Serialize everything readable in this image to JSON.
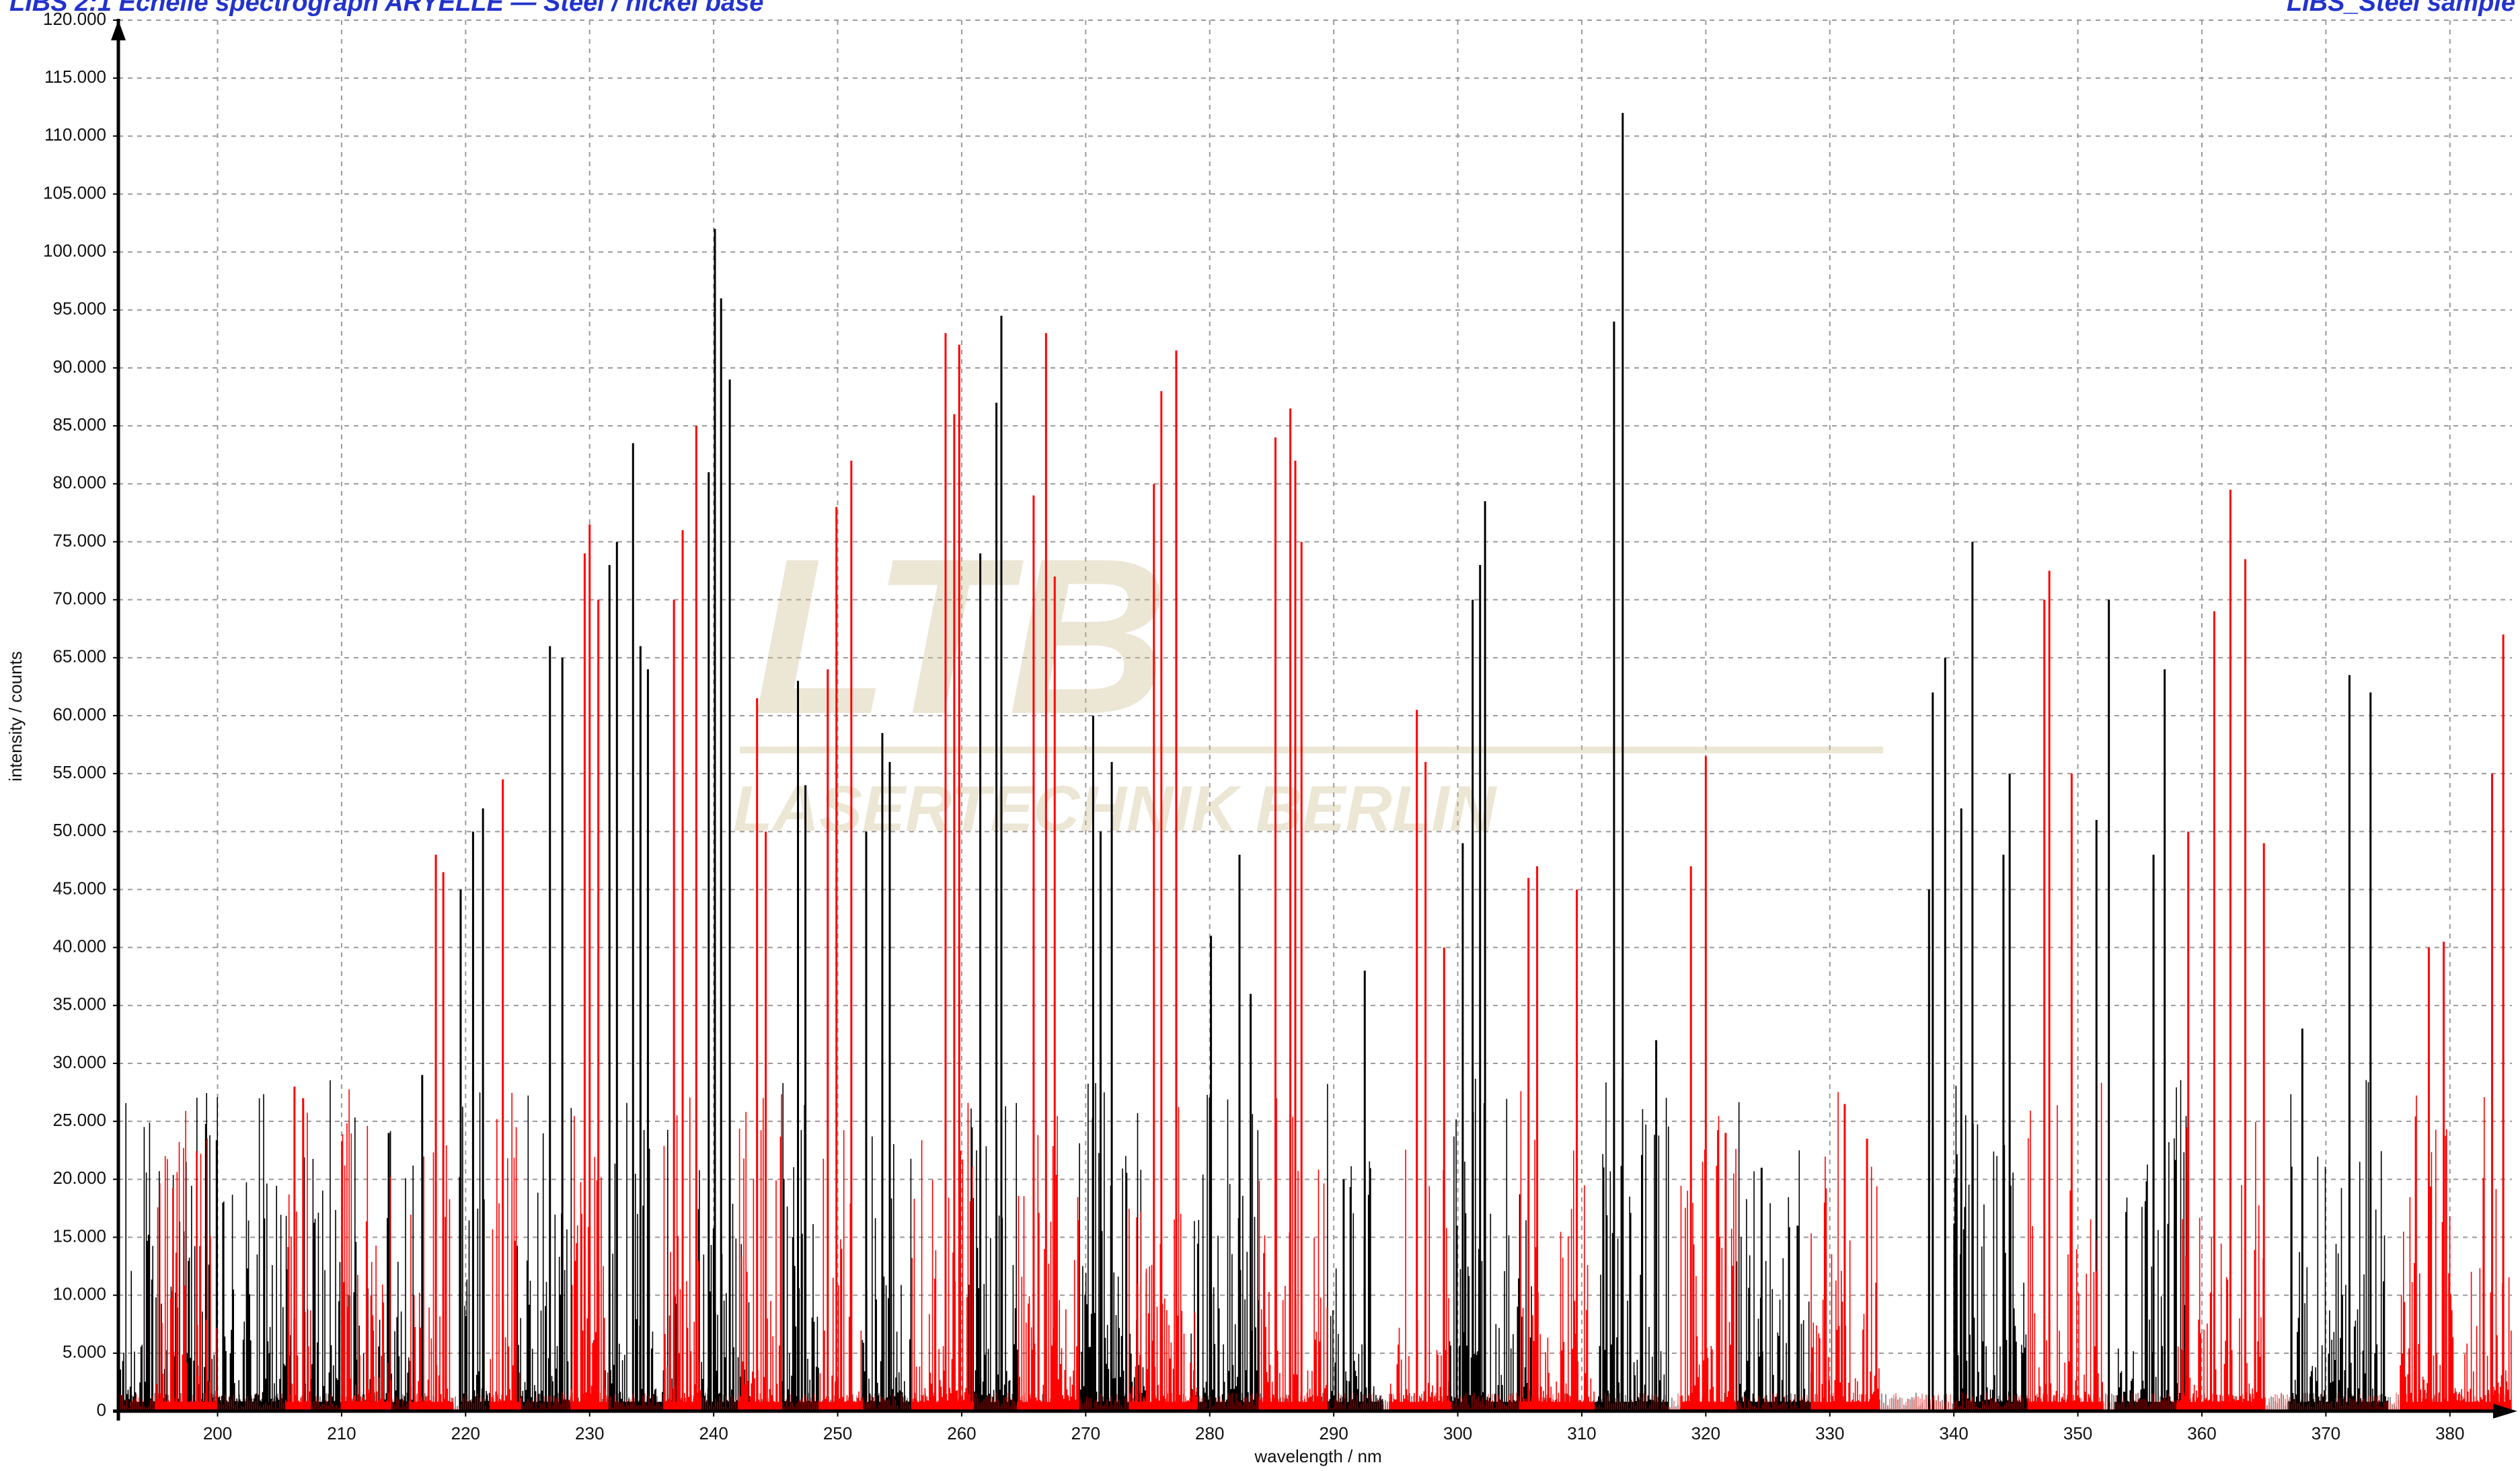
{
  "header": {
    "left_text": "LIBS 2:1 Echelle spectrograph ARYELLE — Steel / nickel base",
    "right_text": "LIBS_Steel sample"
  },
  "watermark": {
    "logo_text": "LTB",
    "sub_text": "LASERTECHNIK BERLIN"
  },
  "colors": {
    "series_black": "#000000",
    "series_red": "#ff0000",
    "grid": "#9a9a9a",
    "header": "#2233cc"
  },
  "chart_data": {
    "type": "line",
    "title": "",
    "xlabel": "wavelength / nm",
    "ylabel": "intensity / counts",
    "xlim": [
      192,
      385
    ],
    "ylim": [
      0,
      120000
    ],
    "x_ticks": [
      200,
      210,
      220,
      230,
      240,
      250,
      260,
      270,
      280,
      290,
      300,
      310,
      320,
      330,
      340,
      350,
      360,
      370,
      380
    ],
    "x_tick_labels": [
      "200",
      "210",
      "220",
      "230",
      "240",
      "250",
      "260",
      "270",
      "280",
      "290",
      "300",
      "310",
      "320",
      "330",
      "340",
      "350",
      "360",
      "370",
      "380"
    ],
    "y_ticks": [
      0,
      5000,
      10000,
      15000,
      20000,
      25000,
      30000,
      35000,
      40000,
      45000,
      50000,
      55000,
      60000,
      65000,
      70000,
      75000,
      80000,
      85000,
      90000,
      95000,
      100000,
      105000,
      110000,
      115000,
      120000
    ],
    "y_tick_labels": [
      "0",
      "5.000",
      "10.000",
      "15.000",
      "20.000",
      "25.000",
      "30.000",
      "35.000",
      "40.000",
      "45.000",
      "50.000",
      "55.000",
      "60.000",
      "65.000",
      "70.000",
      "75.000",
      "80.000",
      "85.000",
      "90.000",
      "95.000",
      "100.000",
      "105.000",
      "110.000",
      "115.000",
      "120.000"
    ],
    "grid": true,
    "legend": false,
    "series": [
      {
        "color": "#000000",
        "bands": [
          [
            192,
            206
          ],
          [
            207,
            216
          ],
          [
            219.5,
            222
          ],
          [
            224,
            229
          ],
          [
            231,
            237
          ],
          [
            238.5,
            243
          ],
          [
            245.5,
            248.5
          ],
          [
            252,
            256
          ],
          [
            260.5,
            264.5
          ],
          [
            269.5,
            275
          ],
          [
            278.5,
            284
          ],
          [
            289.5,
            294
          ],
          [
            299,
            306
          ],
          [
            311,
            317
          ],
          [
            322.5,
            328.5
          ],
          [
            340,
            346
          ],
          [
            353,
            359
          ],
          [
            367,
            375
          ]
        ],
        "peaks": [
          {
            "x": 313.3,
            "y": 112000
          },
          {
            "x": 240.1,
            "y": 102000
          },
          {
            "x": 240.6,
            "y": 96000
          },
          {
            "x": 241.3,
            "y": 89000
          },
          {
            "x": 239.6,
            "y": 81000
          },
          {
            "x": 312.6,
            "y": 94000
          },
          {
            "x": 263.2,
            "y": 94500
          },
          {
            "x": 262.8,
            "y": 87000
          },
          {
            "x": 261.5,
            "y": 74000
          },
          {
            "x": 302.2,
            "y": 78500
          },
          {
            "x": 301.8,
            "y": 73000
          },
          {
            "x": 301.2,
            "y": 70000
          },
          {
            "x": 300.4,
            "y": 49000
          },
          {
            "x": 233.5,
            "y": 83500
          },
          {
            "x": 232.2,
            "y": 75000
          },
          {
            "x": 231.6,
            "y": 73000
          },
          {
            "x": 234.1,
            "y": 66000
          },
          {
            "x": 234.7,
            "y": 64000
          },
          {
            "x": 227.8,
            "y": 65000
          },
          {
            "x": 226.8,
            "y": 66000
          },
          {
            "x": 341.5,
            "y": 75000
          },
          {
            "x": 339.3,
            "y": 65000
          },
          {
            "x": 338.3,
            "y": 62000
          },
          {
            "x": 340.6,
            "y": 52000
          },
          {
            "x": 344.0,
            "y": 48000
          },
          {
            "x": 352.5,
            "y": 70000
          },
          {
            "x": 351.5,
            "y": 51000
          },
          {
            "x": 357.0,
            "y": 64000
          },
          {
            "x": 356.1,
            "y": 48000
          },
          {
            "x": 371.9,
            "y": 63500
          },
          {
            "x": 373.6,
            "y": 62000
          },
          {
            "x": 270.6,
            "y": 60000
          },
          {
            "x": 272.1,
            "y": 56000
          },
          {
            "x": 271.2,
            "y": 50000
          },
          {
            "x": 253.6,
            "y": 58500
          },
          {
            "x": 254.2,
            "y": 56000
          },
          {
            "x": 252.3,
            "y": 50000
          },
          {
            "x": 246.8,
            "y": 63000
          },
          {
            "x": 247.4,
            "y": 54000
          },
          {
            "x": 220.6,
            "y": 50000
          },
          {
            "x": 221.4,
            "y": 52000
          },
          {
            "x": 219.6,
            "y": 45000
          },
          {
            "x": 216.5,
            "y": 29000
          },
          {
            "x": 213.8,
            "y": 24000
          },
          {
            "x": 282.4,
            "y": 48000
          },
          {
            "x": 280.1,
            "y": 41000
          },
          {
            "x": 283.3,
            "y": 36000
          },
          {
            "x": 292.5,
            "y": 38000
          },
          {
            "x": 290.8,
            "y": 20000
          },
          {
            "x": 316.0,
            "y": 32000
          },
          {
            "x": 324.5,
            "y": 21000
          },
          {
            "x": 327.4,
            "y": 16000
          },
          {
            "x": 338.0,
            "y": 45000
          },
          {
            "x": 344.5,
            "y": 55000
          },
          {
            "x": 368.1,
            "y": 33000
          },
          {
            "x": 210.6,
            "y": 10000
          },
          {
            "x": 206.2,
            "y": 8000
          },
          {
            "x": 204.2,
            "y": 5000
          },
          {
            "x": 197.6,
            "y": 5000
          }
        ]
      },
      {
        "color": "#ff0000",
        "bands": [
          [
            195,
            200
          ],
          [
            205.5,
            207.5
          ],
          [
            210,
            214
          ],
          [
            215.5,
            219
          ],
          [
            222,
            224.5
          ],
          [
            228.5,
            231.5
          ],
          [
            236,
            239
          ],
          [
            242,
            245.5
          ],
          [
            248.5,
            252
          ],
          [
            256,
            261
          ],
          [
            264.5,
            269.5
          ],
          [
            273.5,
            279
          ],
          [
            284,
            289.5
          ],
          [
            294.5,
            299.5
          ],
          [
            305,
            311
          ],
          [
            318,
            322.5
          ],
          [
            328.5,
            334
          ],
          [
            346,
            352
          ],
          [
            358,
            365
          ],
          [
            376,
            385
          ]
        ],
        "peaks": [
          {
            "x": 258.7,
            "y": 93000
          },
          {
            "x": 259.8,
            "y": 92000
          },
          {
            "x": 259.4,
            "y": 86000
          },
          {
            "x": 266.8,
            "y": 93000
          },
          {
            "x": 265.8,
            "y": 79000
          },
          {
            "x": 267.5,
            "y": 72000
          },
          {
            "x": 277.3,
            "y": 91500
          },
          {
            "x": 276.1,
            "y": 88000
          },
          {
            "x": 275.5,
            "y": 80000
          },
          {
            "x": 286.5,
            "y": 86500
          },
          {
            "x": 285.3,
            "y": 84000
          },
          {
            "x": 286.9,
            "y": 82000
          },
          {
            "x": 287.4,
            "y": 75000
          },
          {
            "x": 251.1,
            "y": 82000
          },
          {
            "x": 249.9,
            "y": 78000
          },
          {
            "x": 249.2,
            "y": 64000
          },
          {
            "x": 238.6,
            "y": 85000
          },
          {
            "x": 237.5,
            "y": 76000
          },
          {
            "x": 236.8,
            "y": 70000
          },
          {
            "x": 230.0,
            "y": 76500
          },
          {
            "x": 229.6,
            "y": 74000
          },
          {
            "x": 230.7,
            "y": 70000
          },
          {
            "x": 362.3,
            "y": 79500
          },
          {
            "x": 363.5,
            "y": 73500
          },
          {
            "x": 361.0,
            "y": 69000
          },
          {
            "x": 347.7,
            "y": 72500
          },
          {
            "x": 347.3,
            "y": 70000
          },
          {
            "x": 349.5,
            "y": 55000
          },
          {
            "x": 384.3,
            "y": 67000
          },
          {
            "x": 383.4,
            "y": 55000
          },
          {
            "x": 378.3,
            "y": 40000
          },
          {
            "x": 379.5,
            "y": 40500
          },
          {
            "x": 243.5,
            "y": 61500
          },
          {
            "x": 244.2,
            "y": 50000
          },
          {
            "x": 296.7,
            "y": 60500
          },
          {
            "x": 297.4,
            "y": 56000
          },
          {
            "x": 298.9,
            "y": 40000
          },
          {
            "x": 320.0,
            "y": 56500
          },
          {
            "x": 318.8,
            "y": 47000
          },
          {
            "x": 321.6,
            "y": 24000
          },
          {
            "x": 223.0,
            "y": 54500
          },
          {
            "x": 217.6,
            "y": 48000
          },
          {
            "x": 218.2,
            "y": 46500
          },
          {
            "x": 306.4,
            "y": 47000
          },
          {
            "x": 309.6,
            "y": 45000
          },
          {
            "x": 305.7,
            "y": 46000
          },
          {
            "x": 331.2,
            "y": 26500
          },
          {
            "x": 333.0,
            "y": 23500
          },
          {
            "x": 329.6,
            "y": 18000
          },
          {
            "x": 206.2,
            "y": 28000
          },
          {
            "x": 206.9,
            "y": 27000
          },
          {
            "x": 212.4,
            "y": 10000
          },
          {
            "x": 210.5,
            "y": 9000
          },
          {
            "x": 198.4,
            "y": 3000
          },
          {
            "x": 365.0,
            "y": 49000
          },
          {
            "x": 358.9,
            "y": 50000
          }
        ]
      }
    ]
  }
}
